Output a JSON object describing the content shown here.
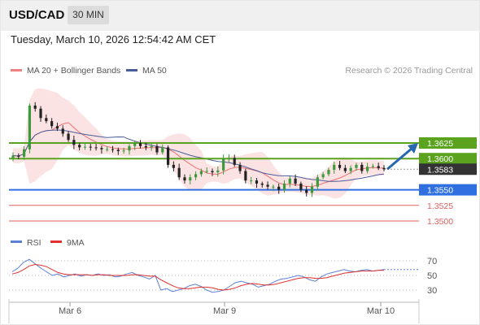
{
  "header": {
    "symbol": "USD/CAD",
    "timeframe": "30 MIN",
    "datetime": "Tuesday, March 10, 2026 12:54:42 AM CET"
  },
  "legend": {
    "ma20_bollinger": "MA 20 + Bollinger Bands",
    "ma50": "MA 50",
    "copyright": "Research © 2026 Trading Central"
  },
  "rsi_legend": {
    "rsi": "RSI",
    "nine_ma": "9MA"
  },
  "colors": {
    "green": "#5ba31f",
    "blue": "#2f6fe0",
    "red": "#e06060",
    "candle_up": "#3c9a3c",
    "candle_down": "#222222",
    "band_fill": "#fcdede",
    "ma50": "#4a5b9a",
    "rsi": "#5b7fd6",
    "rsi_ma": "#e03030",
    "arrow": "#2868b0",
    "last_price_bg": "#333333"
  },
  "chart_data": [
    {
      "type": "candlestick",
      "title": "USD/CAD",
      "timeframe": "30 MIN",
      "x_labels": [
        "Mar 6",
        "Mar 9",
        "Mar 10"
      ],
      "y_range": [
        1.3495,
        1.3645
      ],
      "levels": [
        {
          "value": 1.3625,
          "label": "1.3625",
          "kind": "resistance",
          "color": "#5ba31f"
        },
        {
          "value": 1.36,
          "label": "1.3600",
          "kind": "resistance",
          "color": "#5ba31f"
        },
        {
          "value": 1.3583,
          "label": "1.3583",
          "kind": "last_price",
          "color": "#333333"
        },
        {
          "value": 1.355,
          "label": "1.3550",
          "kind": "pivot",
          "color": "#2f6fe0"
        },
        {
          "value": 1.3525,
          "label": "1.3525",
          "kind": "support",
          "color": "#e06060"
        },
        {
          "value": 1.35,
          "label": "1.3500",
          "kind": "support",
          "color": "#e06060"
        }
      ],
      "target_arrow": {
        "from": 1.3583,
        "to": 1.3625
      },
      "close_path": [
        1.3605,
        1.3603,
        1.3615,
        1.3685,
        1.368,
        1.3665,
        1.366,
        1.3652,
        1.3648,
        1.364,
        1.363,
        1.3622,
        1.3618,
        1.3619,
        1.3618,
        1.3617,
        1.3615,
        1.3615,
        1.3614,
        1.3612,
        1.3613,
        1.362,
        1.3625,
        1.362,
        1.3618,
        1.362,
        1.361,
        1.3618,
        1.359,
        1.3585,
        1.357,
        1.3565,
        1.357,
        1.3575,
        1.358,
        1.358,
        1.3578,
        1.3581,
        1.36,
        1.3601,
        1.359,
        1.358,
        1.3565,
        1.3565,
        1.356,
        1.3558,
        1.3555,
        1.3555,
        1.355,
        1.356,
        1.3568,
        1.356,
        1.355,
        1.3545,
        1.3555,
        1.357,
        1.3575,
        1.3582,
        1.359,
        1.3585,
        1.358,
        1.3585,
        1.359,
        1.358,
        1.3587,
        1.3588,
        1.3585,
        1.3583
      ],
      "rsi": {
        "levels": [
          70,
          50,
          30
        ],
        "rsi_path": [
          55,
          60,
          68,
          72,
          66,
          60,
          55,
          50,
          52,
          48,
          50,
          52,
          49,
          51,
          50,
          52,
          50,
          51,
          48,
          49,
          52,
          54,
          50,
          48,
          45,
          50,
          30,
          32,
          28,
          30,
          32,
          36,
          38,
          35,
          30,
          27,
          28,
          30,
          35,
          40,
          42,
          40,
          38,
          34,
          36,
          38,
          42,
          45,
          46,
          48,
          50,
          48,
          44,
          42,
          48,
          52,
          54,
          56,
          58,
          56,
          55,
          57,
          58,
          56,
          57,
          58
        ],
        "ma_path": [
          52,
          54,
          58,
          63,
          65,
          64,
          62,
          58,
          54,
          52,
          51,
          51,
          51,
          51,
          50,
          51,
          51,
          50,
          50,
          50,
          50,
          51,
          51,
          50,
          49,
          49,
          44,
          40,
          36,
          33,
          32,
          32,
          33,
          34,
          34,
          33,
          31,
          30,
          31,
          33,
          36,
          38,
          39,
          38,
          37,
          37,
          38,
          40,
          42,
          44,
          46,
          47,
          47,
          46,
          46,
          47,
          49,
          51,
          53,
          54,
          55,
          56,
          56,
          56,
          57,
          57
        ]
      }
    }
  ]
}
